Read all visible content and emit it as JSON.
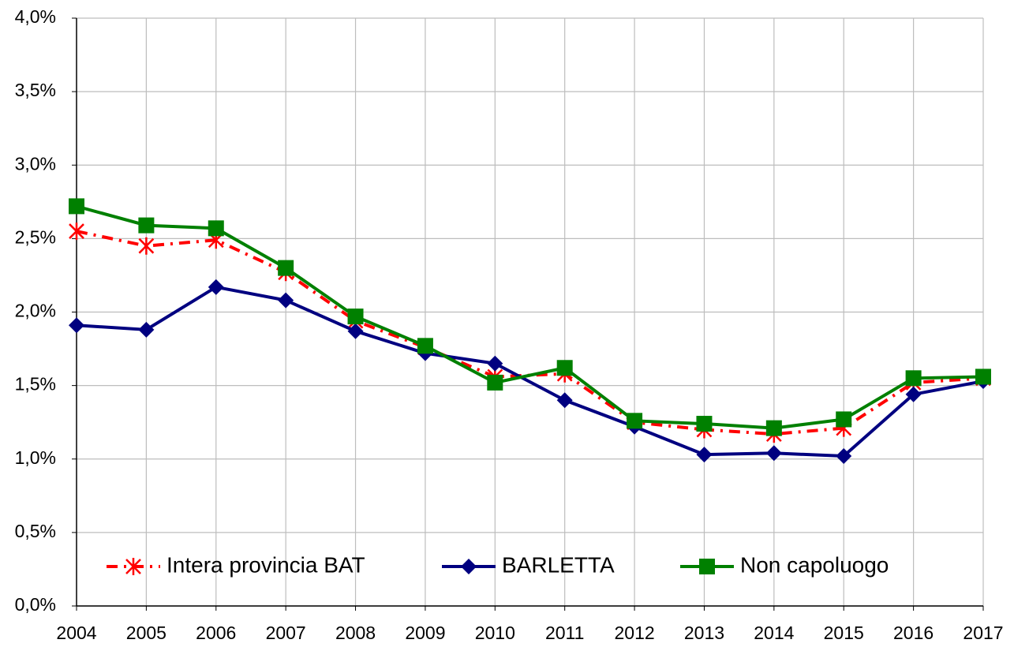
{
  "chart_data": {
    "type": "line",
    "categories": [
      "2004",
      "2005",
      "2006",
      "2007",
      "2008",
      "2009",
      "2010",
      "2011",
      "2012",
      "2013",
      "2014",
      "2015",
      "2016",
      "2017"
    ],
    "series": [
      {
        "name": "Intera provincia BAT",
        "color": "#ff0000",
        "marker": "asterisk",
        "dash": "dash-dot",
        "values": [
          2.55,
          2.45,
          2.49,
          2.27,
          1.94,
          1.76,
          1.56,
          1.58,
          1.25,
          1.2,
          1.17,
          1.21,
          1.52,
          1.55
        ]
      },
      {
        "name": "BARLETTA",
        "color": "#000080",
        "marker": "diamond",
        "dash": "solid",
        "values": [
          1.91,
          1.88,
          2.17,
          2.08,
          1.87,
          1.72,
          1.65,
          1.4,
          1.22,
          1.03,
          1.04,
          1.02,
          1.44,
          1.53
        ]
      },
      {
        "name": "Non capoluogo",
        "color": "#008000",
        "marker": "square",
        "dash": "solid",
        "values": [
          2.72,
          2.59,
          2.57,
          2.3,
          1.97,
          1.77,
          1.52,
          1.62,
          1.26,
          1.24,
          1.21,
          1.27,
          1.55,
          1.56
        ]
      }
    ],
    "ylim": [
      0,
      4
    ],
    "yticks": [
      {
        "value": 0,
        "label": "0,0%"
      },
      {
        "value": 0.5,
        "label": "0,5%"
      },
      {
        "value": 1,
        "label": "1,0%"
      },
      {
        "value": 1.5,
        "label": "1,5%"
      },
      {
        "value": 2,
        "label": "2,0%"
      },
      {
        "value": 2.5,
        "label": "2,5%"
      },
      {
        "value": 3,
        "label": "3,0%"
      },
      {
        "value": 3.5,
        "label": "3,5%"
      },
      {
        "value": 4,
        "label": "4,0%"
      }
    ],
    "grid": true,
    "legend": "bottom"
  }
}
